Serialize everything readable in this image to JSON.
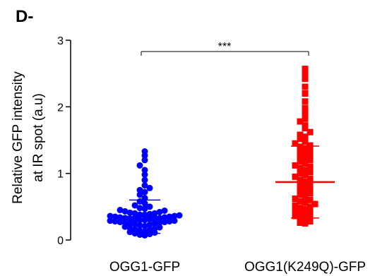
{
  "panel_label": "D-",
  "chart_data": {
    "type": "scatter",
    "ylabel_line1": "Relative GFP intensity",
    "ylabel_line2": "at IR spot (a.u)",
    "ylim": [
      0,
      3
    ],
    "yticks": [
      "0",
      "1",
      "2",
      "3"
    ],
    "categories": [
      "OGG1-GFP",
      "OGG1(K249Q)-GFP"
    ],
    "series": [
      {
        "category": "OGG1-GFP",
        "color": "#0000ff",
        "marker": "circle",
        "mean": 0.35,
        "sd_upper": 0.6,
        "sd_lower": 0.1,
        "values": [
          1.33,
          1.27,
          1.2,
          1.12,
          1.05,
          0.98,
          0.9,
          0.82,
          0.78,
          0.75,
          0.72,
          0.68,
          0.63,
          0.58,
          0.55,
          0.52,
          0.5,
          0.48,
          0.47,
          0.45,
          0.44,
          0.43,
          0.42,
          0.41,
          0.4,
          0.4,
          0.39,
          0.38,
          0.38,
          0.37,
          0.36,
          0.36,
          0.35,
          0.35,
          0.34,
          0.34,
          0.33,
          0.33,
          0.32,
          0.32,
          0.31,
          0.31,
          0.3,
          0.3,
          0.29,
          0.29,
          0.28,
          0.28,
          0.27,
          0.27,
          0.26,
          0.26,
          0.25,
          0.25,
          0.24,
          0.23,
          0.22,
          0.21,
          0.2,
          0.19,
          0.18,
          0.17,
          0.16,
          0.15,
          0.14,
          0.13,
          0.12,
          0.11,
          0.1,
          0.09,
          0.08,
          0.07
        ]
      },
      {
        "category": "OGG1(K249Q)-GFP",
        "color": "#ff0000",
        "marker": "square",
        "mean": 0.87,
        "sd_upper": 1.41,
        "sd_lower": 0.33,
        "values": [
          2.57,
          2.5,
          2.42,
          2.3,
          2.2,
          2.08,
          1.98,
          1.9,
          1.82,
          1.78,
          1.72,
          1.68,
          1.62,
          1.58,
          1.55,
          1.52,
          1.48,
          1.45,
          1.42,
          1.4,
          1.38,
          1.35,
          1.32,
          1.3,
          1.28,
          1.25,
          1.22,
          1.2,
          1.18,
          1.15,
          1.12,
          1.1,
          1.08,
          1.05,
          1.02,
          1.0,
          0.98,
          0.95,
          0.92,
          0.9,
          0.88,
          0.85,
          0.82,
          0.8,
          0.78,
          0.75,
          0.72,
          0.7,
          0.68,
          0.65,
          0.62,
          0.6,
          0.58,
          0.56,
          0.54,
          0.52,
          0.5,
          0.48,
          0.46,
          0.44,
          0.42,
          0.4,
          0.38,
          0.36,
          0.34,
          0.32,
          0.3,
          0.28,
          0.26,
          0.25
        ]
      }
    ],
    "annotation": "***"
  }
}
